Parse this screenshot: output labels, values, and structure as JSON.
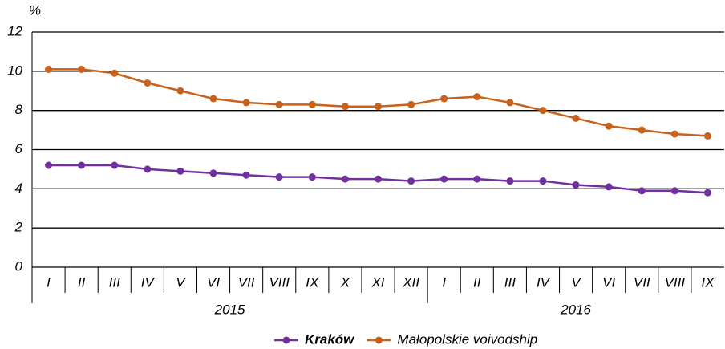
{
  "chart_data": {
    "type": "line",
    "y_label": "%",
    "categories": [
      "I",
      "II",
      "III",
      "IV",
      "V",
      "VI",
      "VII",
      "VIII",
      "IX",
      "X",
      "XI",
      "XII",
      "I",
      "II",
      "III",
      "IV",
      "V",
      "VI",
      "VII",
      "VIII",
      "IX"
    ],
    "years": [
      "2015",
      "2016"
    ],
    "series": [
      {
        "name": "Kraków",
        "color": "#7030a0",
        "values": [
          5.2,
          5.2,
          5.2,
          5.0,
          4.9,
          4.8,
          4.7,
          4.6,
          4.6,
          4.5,
          4.5,
          4.4,
          4.5,
          4.5,
          4.4,
          4.4,
          4.2,
          4.1,
          3.9,
          3.9,
          3.8
        ]
      },
      {
        "name": "Małopolskie voivodship",
        "color": "#c8611b",
        "values": [
          10.1,
          10.1,
          9.9,
          9.4,
          9.0,
          8.6,
          8.4,
          8.3,
          8.3,
          8.2,
          8.2,
          8.3,
          8.6,
          8.7,
          8.4,
          8.0,
          7.6,
          7.2,
          7.0,
          6.8,
          6.7
        ]
      }
    ],
    "ylim": [
      0,
      12
    ],
    "yticks": [
      0,
      2,
      4,
      6,
      8,
      10,
      12
    ],
    "grid": true,
    "legend": "bottom"
  }
}
